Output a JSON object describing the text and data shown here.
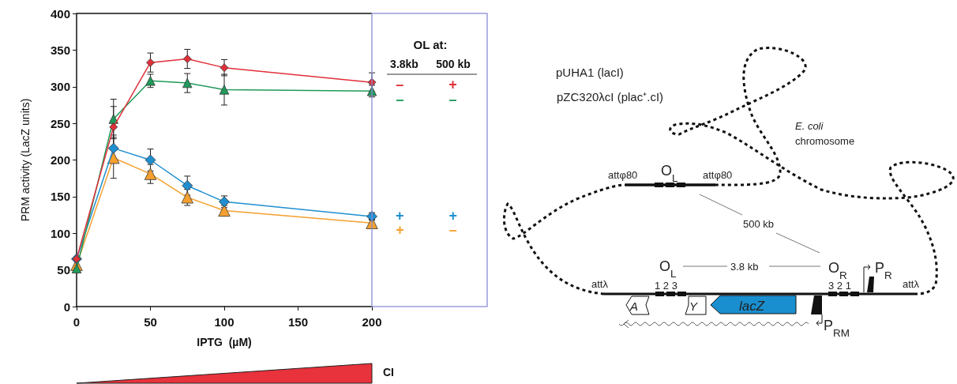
{
  "chart_data": {
    "type": "line",
    "xlabel": "IPTG  (µM)",
    "ylabel": "PRM activity (LacZ units)",
    "legend_title": "OL at:",
    "legend": "right",
    "grid": false,
    "line_style": "solid",
    "x": [
      0,
      25,
      50,
      75,
      100,
      200
    ],
    "xlim": [
      0,
      200
    ],
    "xticks": [
      0,
      50,
      100,
      150,
      200
    ],
    "ylim": [
      0,
      400
    ],
    "yticks": [
      0,
      50,
      100,
      150,
      200,
      250,
      300,
      350,
      400
    ],
    "series": [
      {
        "name": "– +",
        "color": "#e0303a",
        "marker": "diamond",
        "values": [
          65,
          245,
          333,
          338,
          326,
          306
        ],
        "errors": [
          null,
          28,
          13,
          13,
          11,
          13
        ]
      },
      {
        "name": "– –",
        "color": "#1f9a5a",
        "marker": "triangle",
        "values": [
          52,
          256,
          308,
          305,
          296,
          294
        ],
        "errors": [
          null,
          27,
          9,
          13,
          21,
          8
        ]
      },
      {
        "name": "+ +",
        "color": "#1f8fd0",
        "marker": "diamond",
        "values": [
          65,
          216,
          200,
          165,
          143,
          123
        ],
        "errors": [
          null,
          18,
          15,
          13,
          8,
          5
        ]
      },
      {
        "name": "+ –",
        "color": "#f5a030",
        "marker": "triangle",
        "values": [
          57,
          203,
          181,
          149,
          131,
          114
        ],
        "errors": [
          null,
          28,
          13,
          11,
          7,
          5
        ]
      }
    ],
    "annotations": [
      "3.8kb",
      "500 kb",
      "CI",
      "pUHA1  (lacI)",
      "pZC320λcI  (plac⁺.cI)",
      "E. coli",
      "chromosome",
      "attφ80",
      "O$_{L}$",
      "attφ80",
      "500 kb",
      "O$_{L}$",
      "3.8 kb",
      "O$_{R}$",
      "P$_{R}$",
      "attλ",
      "1 2 3",
      "3 2 1",
      "attλ",
      "A",
      "Y",
      "lacZ",
      "P$_{RM}$"
    ]
  }
}
